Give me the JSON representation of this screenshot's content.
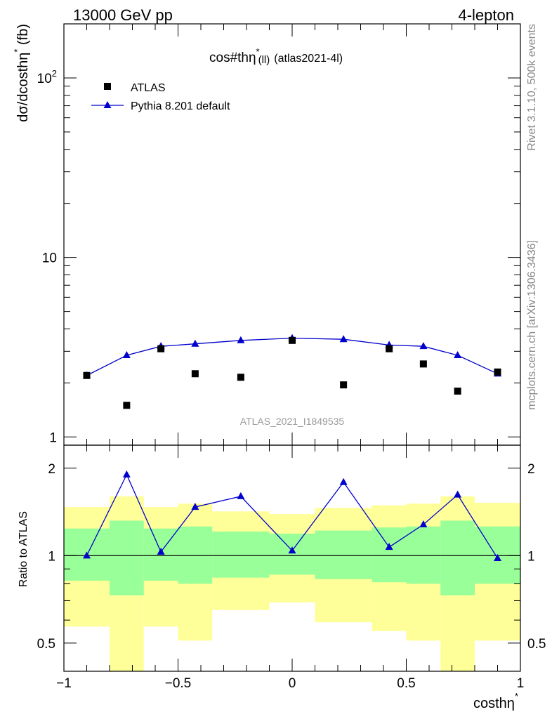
{
  "header": {
    "left": "13000 GeV pp",
    "right": "4-lepton"
  },
  "side_labels": {
    "rivet": "Rivet 3.1.10,  500k events",
    "mcplots": "mcplots.cern.ch [arXiv:1306.3436]"
  },
  "chart_data": [
    {
      "type": "scatter",
      "title_main": "cos#thη",
      "title_sup": "*",
      "title_sub": "(ll)",
      "title_tail": "(atlas2021-4l)",
      "watermark": "ATLAS_2021_I1849535",
      "ylabel": "dσ/dcosthη",
      "ylabel_sup": "*",
      "ylabel_unit": " (fb)",
      "yscale": "log",
      "ylim": [
        0.9,
        200
      ],
      "xlim": [
        -1,
        1
      ],
      "y_tick_labels": [
        {
          "value": 1,
          "label": "1"
        },
        {
          "value": 10,
          "label": "10"
        },
        {
          "value": 100,
          "label": "10",
          "sup": "2"
        }
      ],
      "legend": {
        "placement": "top-left",
        "entries": [
          "ATLAS",
          "Pythia 8.201 default"
        ]
      },
      "series": [
        {
          "name": "ATLAS",
          "marker": "square",
          "color": "#000000",
          "x": [
            -0.9,
            -0.725,
            -0.575,
            -0.425,
            -0.225,
            0.0,
            0.225,
            0.425,
            0.575,
            0.725,
            0.9
          ],
          "y": [
            2.2,
            1.5,
            3.1,
            2.25,
            2.15,
            3.45,
            1.95,
            3.1,
            2.55,
            1.8,
            2.3
          ]
        },
        {
          "name": "Pythia 8.201 default",
          "marker": "triangle",
          "color": "#0000cc",
          "x": [
            -0.9,
            -0.725,
            -0.575,
            -0.425,
            -0.225,
            0.0,
            0.225,
            0.425,
            0.575,
            0.725,
            0.9
          ],
          "y": [
            2.2,
            2.85,
            3.2,
            3.3,
            3.45,
            3.55,
            3.5,
            3.25,
            3.2,
            2.85,
            2.25
          ]
        }
      ]
    },
    {
      "type": "line",
      "ylabel": "Ratio to ATLAS",
      "xlabel": "costhη",
      "xlabel_sup": "*",
      "yscale": "log",
      "ylim": [
        0.4,
        2.4
      ],
      "xlim": [
        -1,
        1
      ],
      "x_tick_labels": [
        {
          "value": -1,
          "label": "−1"
        },
        {
          "value": -0.5,
          "label": "−0.5"
        },
        {
          "value": 0,
          "label": "0"
        },
        {
          "value": 0.5,
          "label": "0.5"
        },
        {
          "value": 1,
          "label": "1"
        }
      ],
      "y_tick_labels": [
        {
          "value": 0.5,
          "label": "0.5"
        },
        {
          "value": 1,
          "label": "1"
        },
        {
          "value": 2,
          "label": "2"
        }
      ],
      "bin_edges": [
        -1.0,
        -0.8,
        -0.65,
        -0.5,
        -0.35,
        -0.1,
        0.1,
        0.35,
        0.5,
        0.65,
        0.8,
        1.0
      ],
      "band_outer": {
        "color": "#ffff99",
        "low": [
          0.57,
          0.4,
          0.57,
          0.51,
          0.65,
          0.69,
          0.59,
          0.55,
          0.51,
          0.4,
          0.51
        ],
        "high": [
          1.47,
          1.6,
          1.47,
          1.51,
          1.42,
          1.39,
          1.46,
          1.49,
          1.51,
          1.6,
          1.52
        ]
      },
      "band_inner": {
        "color": "#99ff99",
        "low": [
          0.82,
          0.73,
          0.82,
          0.8,
          0.84,
          0.86,
          0.83,
          0.81,
          0.8,
          0.73,
          0.8
        ],
        "high": [
          1.24,
          1.32,
          1.24,
          1.26,
          1.21,
          1.19,
          1.22,
          1.25,
          1.26,
          1.32,
          1.26
        ]
      },
      "reference": 1.0,
      "series": [
        {
          "name": "Pythia 8.201 default",
          "marker": "triangle",
          "color": "#0000cc",
          "x": [
            -0.9,
            -0.725,
            -0.575,
            -0.425,
            -0.225,
            0.0,
            0.225,
            0.425,
            0.575,
            0.725,
            0.9
          ],
          "y": [
            1.0,
            1.9,
            1.03,
            1.47,
            1.6,
            1.04,
            1.79,
            1.07,
            1.28,
            1.62,
            0.98
          ]
        }
      ]
    }
  ]
}
